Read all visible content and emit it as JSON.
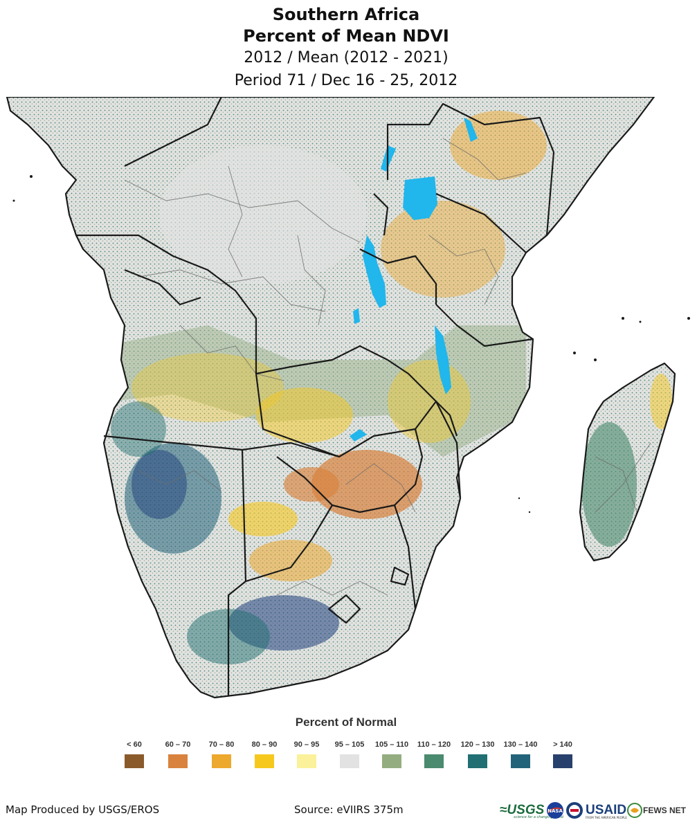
{
  "map": {
    "title_line1": "Southern Africa",
    "title_line2": "Percent of Mean NDVI",
    "subtitle_line1": "2012 / Mean (2012 - 2021)",
    "subtitle_line2": "Period 71 / Dec 16 - 25, 2012",
    "region": "Southern Africa"
  },
  "legend": {
    "title": "Percent of Normal",
    "classes": [
      {
        "label": "< 60",
        "color": "#8b5a2b"
      },
      {
        "label": "60 – 70",
        "color": "#d9823d"
      },
      {
        "label": "70 – 80",
        "color": "#eda82e"
      },
      {
        "label": "80 – 90",
        "color": "#f6c81e"
      },
      {
        "label": "90 – 95",
        "color": "#fbf19a"
      },
      {
        "label": "95 – 105",
        "color": "#e2e2e2"
      },
      {
        "label": "105 – 110",
        "color": "#93ad80"
      },
      {
        "label": "110 – 120",
        "color": "#4a8a6e"
      },
      {
        "label": "120 – 130",
        "color": "#216f72"
      },
      {
        "label": "130 – 140",
        "color": "#22637a"
      },
      {
        "label": "> 140",
        "color": "#28406c"
      }
    ]
  },
  "colors": {
    "no_change": "#e2e2e2",
    "green": "#4a8a6e",
    "yellow": "#f6c81e",
    "orange": "#d9823d",
    "deep_blue": "#1f3f7d",
    "water": "#21b6ec",
    "border": "#1a1a1a",
    "admin": "#6d6d6d"
  },
  "footer": {
    "produced_by": "Map Produced by USGS/EROS",
    "source": "Source: eVIIRS 375m"
  },
  "logos": {
    "usgs": "≈USGS",
    "usgs_tagline": "science for a changing world",
    "nasa": "NASA",
    "usaid": "USAID",
    "usaid_tagline": "FROM THE AMERICAN PEOPLE",
    "fews": "FEWS NET"
  }
}
